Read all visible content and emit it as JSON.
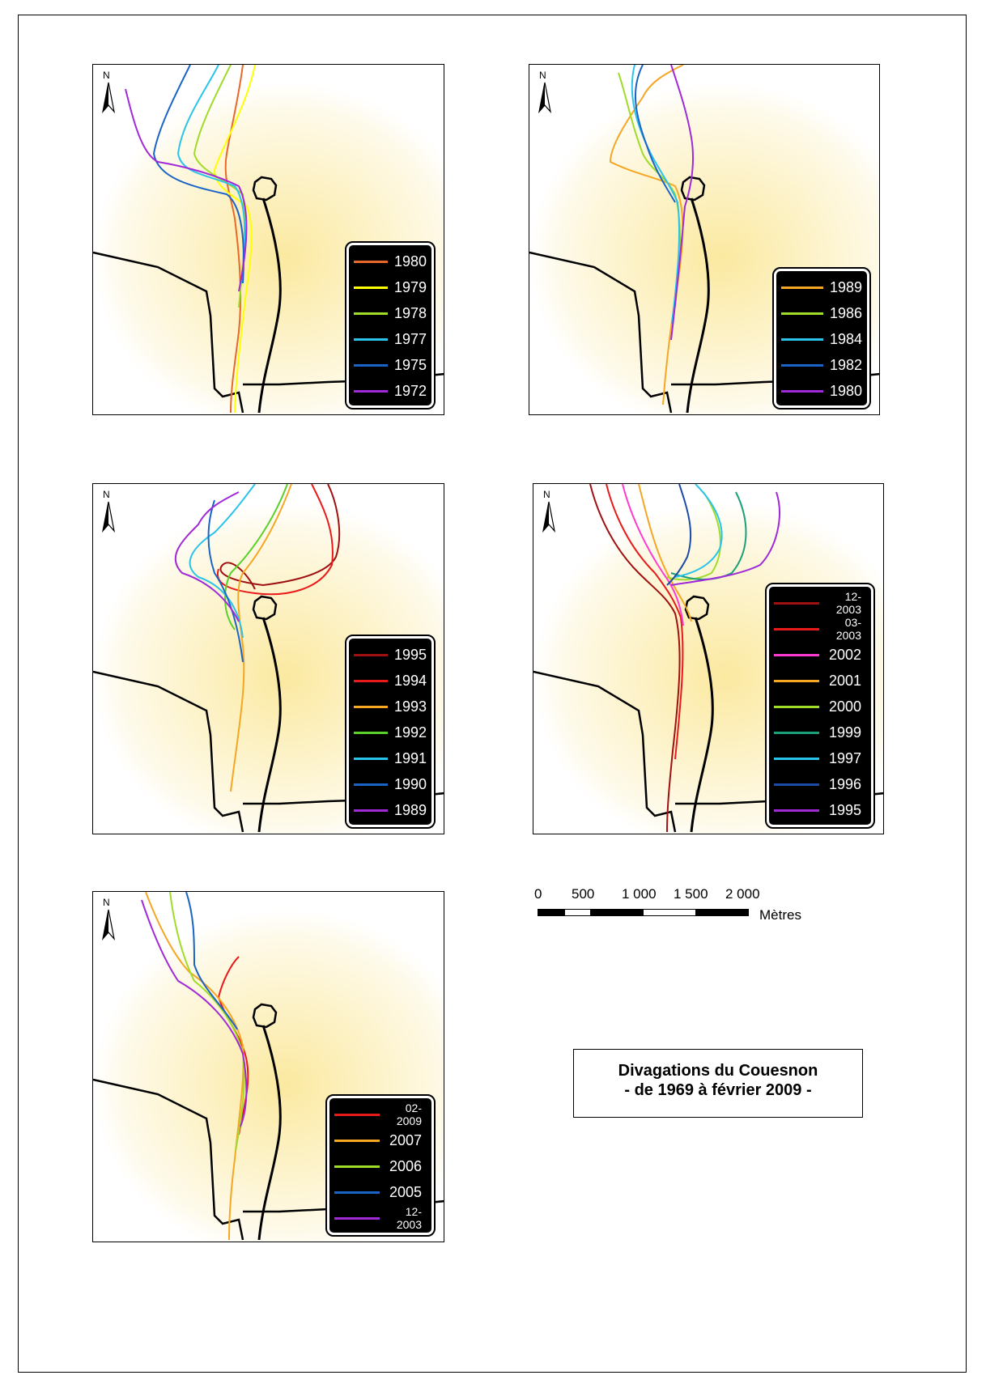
{
  "title": {
    "line1": "Divagations du Couesnon",
    "line2": "- de 1969 à février 2009 -"
  },
  "north_label": "N",
  "north_icon": "north-arrow-icon",
  "scale": {
    "ticks": [
      "0",
      "500",
      "1 000",
      "1 500",
      "2 000"
    ],
    "unit": "Mètres"
  },
  "maps": [
    {
      "id": "map-1",
      "legend": [
        {
          "label": "1980",
          "color": "#e8682a"
        },
        {
          "label": "1979",
          "color": "#ffff00"
        },
        {
          "label": "1978",
          "color": "#9fdc2a"
        },
        {
          "label": "1977",
          "color": "#2ac4ea"
        },
        {
          "label": "1975",
          "color": "#1a64c8"
        },
        {
          "label": "1972",
          "color": "#a12ad8"
        }
      ]
    },
    {
      "id": "map-2",
      "legend": [
        {
          "label": "1989",
          "color": "#f5a623"
        },
        {
          "label": "1986",
          "color": "#9fdc2a"
        },
        {
          "label": "1984",
          "color": "#2ac4ea"
        },
        {
          "label": "1982",
          "color": "#1a64c8"
        },
        {
          "label": "1980",
          "color": "#a12ad8"
        }
      ]
    },
    {
      "id": "map-3",
      "legend": [
        {
          "label": "1995",
          "color": "#a01010"
        },
        {
          "label": "1994",
          "color": "#e81a1a"
        },
        {
          "label": "1993",
          "color": "#f5a623"
        },
        {
          "label": "1992",
          "color": "#5ad02a"
        },
        {
          "label": "1991",
          "color": "#2ac4ea"
        },
        {
          "label": "1990",
          "color": "#1a64c8"
        },
        {
          "label": "1989",
          "color": "#a12ad8"
        }
      ]
    },
    {
      "id": "map-4",
      "legend": [
        {
          "label": "12-2003",
          "color": "#a01010"
        },
        {
          "label": "03-2003",
          "color": "#e81a1a"
        },
        {
          "label": "2002",
          "color": "#ff3ad0"
        },
        {
          "label": "2001",
          "color": "#f5a623"
        },
        {
          "label": "2000",
          "color": "#9fdc2a"
        },
        {
          "label": "1999",
          "color": "#1aa07a"
        },
        {
          "label": "1997",
          "color": "#2ac4ea"
        },
        {
          "label": "1996",
          "color": "#1a4ca8"
        },
        {
          "label": "1995",
          "color": "#a12ad8"
        }
      ]
    },
    {
      "id": "map-5",
      "legend": [
        {
          "label": "02-2009",
          "color": "#e81a1a"
        },
        {
          "label": "2007",
          "color": "#f5a623"
        },
        {
          "label": "2006",
          "color": "#9fdc2a"
        },
        {
          "label": "2005",
          "color": "#1a64c8"
        },
        {
          "label": "12-2003",
          "color": "#a12ad8"
        }
      ]
    }
  ]
}
